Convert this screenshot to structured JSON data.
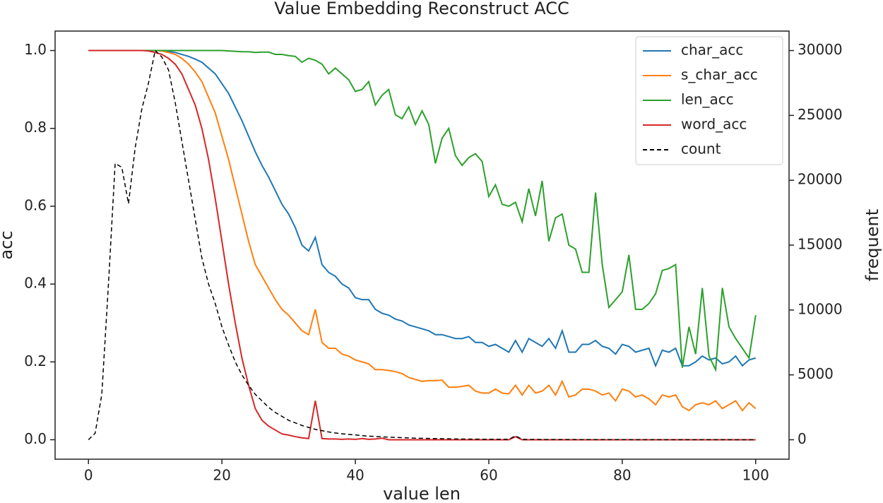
{
  "chart_data": {
    "type": "line",
    "title": "Value Embedding Reconstruct ACC",
    "xlabel": "value len",
    "ylabel": "acc",
    "y2label": "frequent",
    "x": [
      0,
      1,
      2,
      3,
      4,
      5,
      6,
      7,
      8,
      9,
      10,
      11,
      12,
      13,
      14,
      15,
      16,
      17,
      18,
      19,
      20,
      21,
      22,
      23,
      24,
      25,
      26,
      27,
      28,
      29,
      30,
      31,
      32,
      33,
      34,
      35,
      36,
      37,
      38,
      39,
      40,
      41,
      42,
      43,
      44,
      45,
      46,
      47,
      48,
      49,
      50,
      51,
      52,
      53,
      54,
      55,
      56,
      57,
      58,
      59,
      60,
      61,
      62,
      63,
      64,
      65,
      66,
      67,
      68,
      69,
      70,
      71,
      72,
      73,
      74,
      75,
      76,
      77,
      78,
      79,
      80,
      81,
      82,
      83,
      84,
      85,
      86,
      87,
      88,
      89,
      90,
      91,
      92,
      93,
      94,
      95,
      96,
      97,
      98,
      99,
      100
    ],
    "xlim": [
      -5,
      105
    ],
    "xticks": [
      0,
      20,
      40,
      60,
      80,
      100
    ],
    "ylim": [
      -0.05,
      1.05
    ],
    "yticks": [
      {
        "value": 0,
        "label": "0.0"
      },
      0.2,
      0.4,
      0.6,
      0.8,
      {
        "value": 1,
        "label": "1.0"
      }
    ],
    "y2lim": [
      -1500,
      31500
    ],
    "y2ticks": [
      0,
      5000,
      10000,
      15000,
      20000,
      25000,
      30000
    ],
    "legend": "upper right",
    "series": [
      {
        "name": "char_acc",
        "color": "#1f77b4",
        "linestyle": "solid",
        "values": [
          1,
          1,
          1,
          1,
          1,
          1,
          1,
          1,
          1,
          1,
          1,
          1,
          0.998,
          0.995,
          0.99,
          0.985,
          0.978,
          0.97,
          0.955,
          0.94,
          0.915,
          0.89,
          0.855,
          0.82,
          0.78,
          0.74,
          0.705,
          0.675,
          0.64,
          0.605,
          0.58,
          0.545,
          0.5,
          0.485,
          0.52,
          0.45,
          0.43,
          0.42,
          0.4,
          0.39,
          0.365,
          0.36,
          0.36,
          0.335,
          0.325,
          0.32,
          0.31,
          0.305,
          0.295,
          0.29,
          0.285,
          0.28,
          0.27,
          0.27,
          0.265,
          0.26,
          0.26,
          0.265,
          0.25,
          0.25,
          0.24,
          0.245,
          0.235,
          0.225,
          0.255,
          0.225,
          0.26,
          0.25,
          0.24,
          0.26,
          0.235,
          0.28,
          0.225,
          0.225,
          0.245,
          0.245,
          0.255,
          0.24,
          0.235,
          0.22,
          0.245,
          0.24,
          0.225,
          0.23,
          0.235,
          0.19,
          0.23,
          0.225,
          0.235,
          0.19,
          0.19,
          0.2,
          0.215,
          0.205,
          0.21,
          0.195,
          0.2,
          0.215,
          0.19,
          0.205,
          0.21
        ]
      },
      {
        "name": "s_char_acc",
        "color": "#ff7f0e",
        "linestyle": "solid",
        "values": [
          1,
          1,
          1,
          1,
          1,
          1,
          1,
          1,
          1,
          1,
          1,
          0.999,
          0.995,
          0.99,
          0.98,
          0.965,
          0.945,
          0.92,
          0.88,
          0.84,
          0.78,
          0.72,
          0.65,
          0.58,
          0.51,
          0.45,
          0.42,
          0.39,
          0.36,
          0.335,
          0.32,
          0.3,
          0.28,
          0.27,
          0.335,
          0.25,
          0.235,
          0.235,
          0.22,
          0.215,
          0.205,
          0.2,
          0.195,
          0.18,
          0.18,
          0.178,
          0.175,
          0.17,
          0.16,
          0.155,
          0.15,
          0.152,
          0.152,
          0.153,
          0.135,
          0.135,
          0.137,
          0.14,
          0.125,
          0.12,
          0.12,
          0.13,
          0.12,
          0.118,
          0.14,
          0.115,
          0.14,
          0.12,
          0.125,
          0.14,
          0.115,
          0.15,
          0.11,
          0.115,
          0.13,
          0.13,
          0.125,
          0.115,
          0.12,
          0.1,
          0.13,
          0.125,
          0.11,
          0.115,
          0.105,
          0.09,
          0.115,
          0.11,
          0.115,
          0.085,
          0.075,
          0.09,
          0.095,
          0.09,
          0.1,
          0.08,
          0.09,
          0.1,
          0.075,
          0.095,
          0.08
        ]
      },
      {
        "name": "len_acc",
        "color": "#2ca02c",
        "linestyle": "solid",
        "values": [
          1,
          1,
          1,
          1,
          1,
          1,
          1,
          1,
          1,
          1,
          1,
          1,
          1,
          1,
          1,
          1,
          1,
          1,
          1,
          1,
          1,
          0.999,
          0.998,
          0.997,
          0.997,
          0.995,
          0.996,
          0.996,
          0.99,
          0.99,
          0.987,
          0.985,
          0.97,
          0.98,
          0.975,
          0.965,
          0.94,
          0.955,
          0.94,
          0.925,
          0.895,
          0.9,
          0.92,
          0.86,
          0.885,
          0.9,
          0.835,
          0.825,
          0.855,
          0.81,
          0.845,
          0.81,
          0.71,
          0.775,
          0.8,
          0.73,
          0.705,
          0.725,
          0.735,
          0.715,
          0.625,
          0.655,
          0.605,
          0.6,
          0.61,
          0.56,
          0.645,
          0.575,
          0.665,
          0.51,
          0.57,
          0.58,
          0.5,
          0.49,
          0.43,
          0.43,
          0.635,
          0.45,
          0.34,
          0.36,
          0.38,
          0.475,
          0.335,
          0.335,
          0.35,
          0.375,
          0.435,
          0.44,
          0.45,
          0.185,
          0.29,
          0.22,
          0.39,
          0.215,
          0.18,
          0.39,
          0.29,
          0.26,
          0.235,
          0.21,
          0.32
        ]
      },
      {
        "name": "word_acc",
        "color": "#d62728",
        "linestyle": "solid",
        "values": [
          1,
          1,
          1,
          1,
          1,
          1,
          1,
          1,
          1,
          0.999,
          0.995,
          0.99,
          0.98,
          0.965,
          0.94,
          0.9,
          0.86,
          0.8,
          0.72,
          0.62,
          0.51,
          0.4,
          0.3,
          0.21,
          0.14,
          0.08,
          0.05,
          0.035,
          0.025,
          0.015,
          0.012,
          0.008,
          0.005,
          0.003,
          0.1,
          0.003,
          0.002,
          0.002,
          0.001,
          0.002,
          0.001,
          0.003,
          0.001,
          0.002,
          0.004,
          0,
          0,
          0,
          0,
          0,
          0,
          0,
          0,
          0,
          0,
          0,
          0,
          0,
          0,
          0,
          0,
          0,
          0,
          0,
          0.008,
          0,
          0,
          0,
          0,
          0,
          0,
          0,
          0,
          0,
          0,
          0,
          0,
          0,
          0,
          0,
          0,
          0,
          0,
          0,
          0,
          0,
          0,
          0,
          0,
          0,
          0,
          0,
          0,
          0,
          0,
          0,
          0,
          0,
          0,
          0,
          0
        ]
      },
      {
        "name": "count",
        "color": "#000000",
        "linestyle": "dashed",
        "axis": "y2",
        "values": [
          0,
          500,
          3500,
          12000,
          21300,
          21000,
          18200,
          22500,
          25500,
          27500,
          30000,
          29500,
          28500,
          26000,
          23000,
          20000,
          17000,
          14000,
          12000,
          10500,
          8700,
          7300,
          6000,
          5000,
          4200,
          3500,
          3000,
          2500,
          2100,
          1800,
          1500,
          1300,
          1100,
          950,
          800,
          700,
          600,
          520,
          460,
          410,
          370,
          320,
          280,
          250,
          220,
          200,
          180,
          160,
          140,
          120,
          110,
          100,
          90,
          80,
          70,
          60,
          55,
          50,
          45,
          40,
          40,
          35,
          35,
          30,
          300,
          30,
          25,
          25,
          20,
          20,
          20,
          15,
          15,
          15,
          12,
          12,
          10,
          10,
          10,
          8,
          8,
          8,
          6,
          6,
          6,
          5,
          5,
          5,
          4,
          4,
          4,
          3,
          3,
          3,
          2,
          2,
          2,
          1,
          1,
          1,
          1
        ]
      }
    ]
  }
}
